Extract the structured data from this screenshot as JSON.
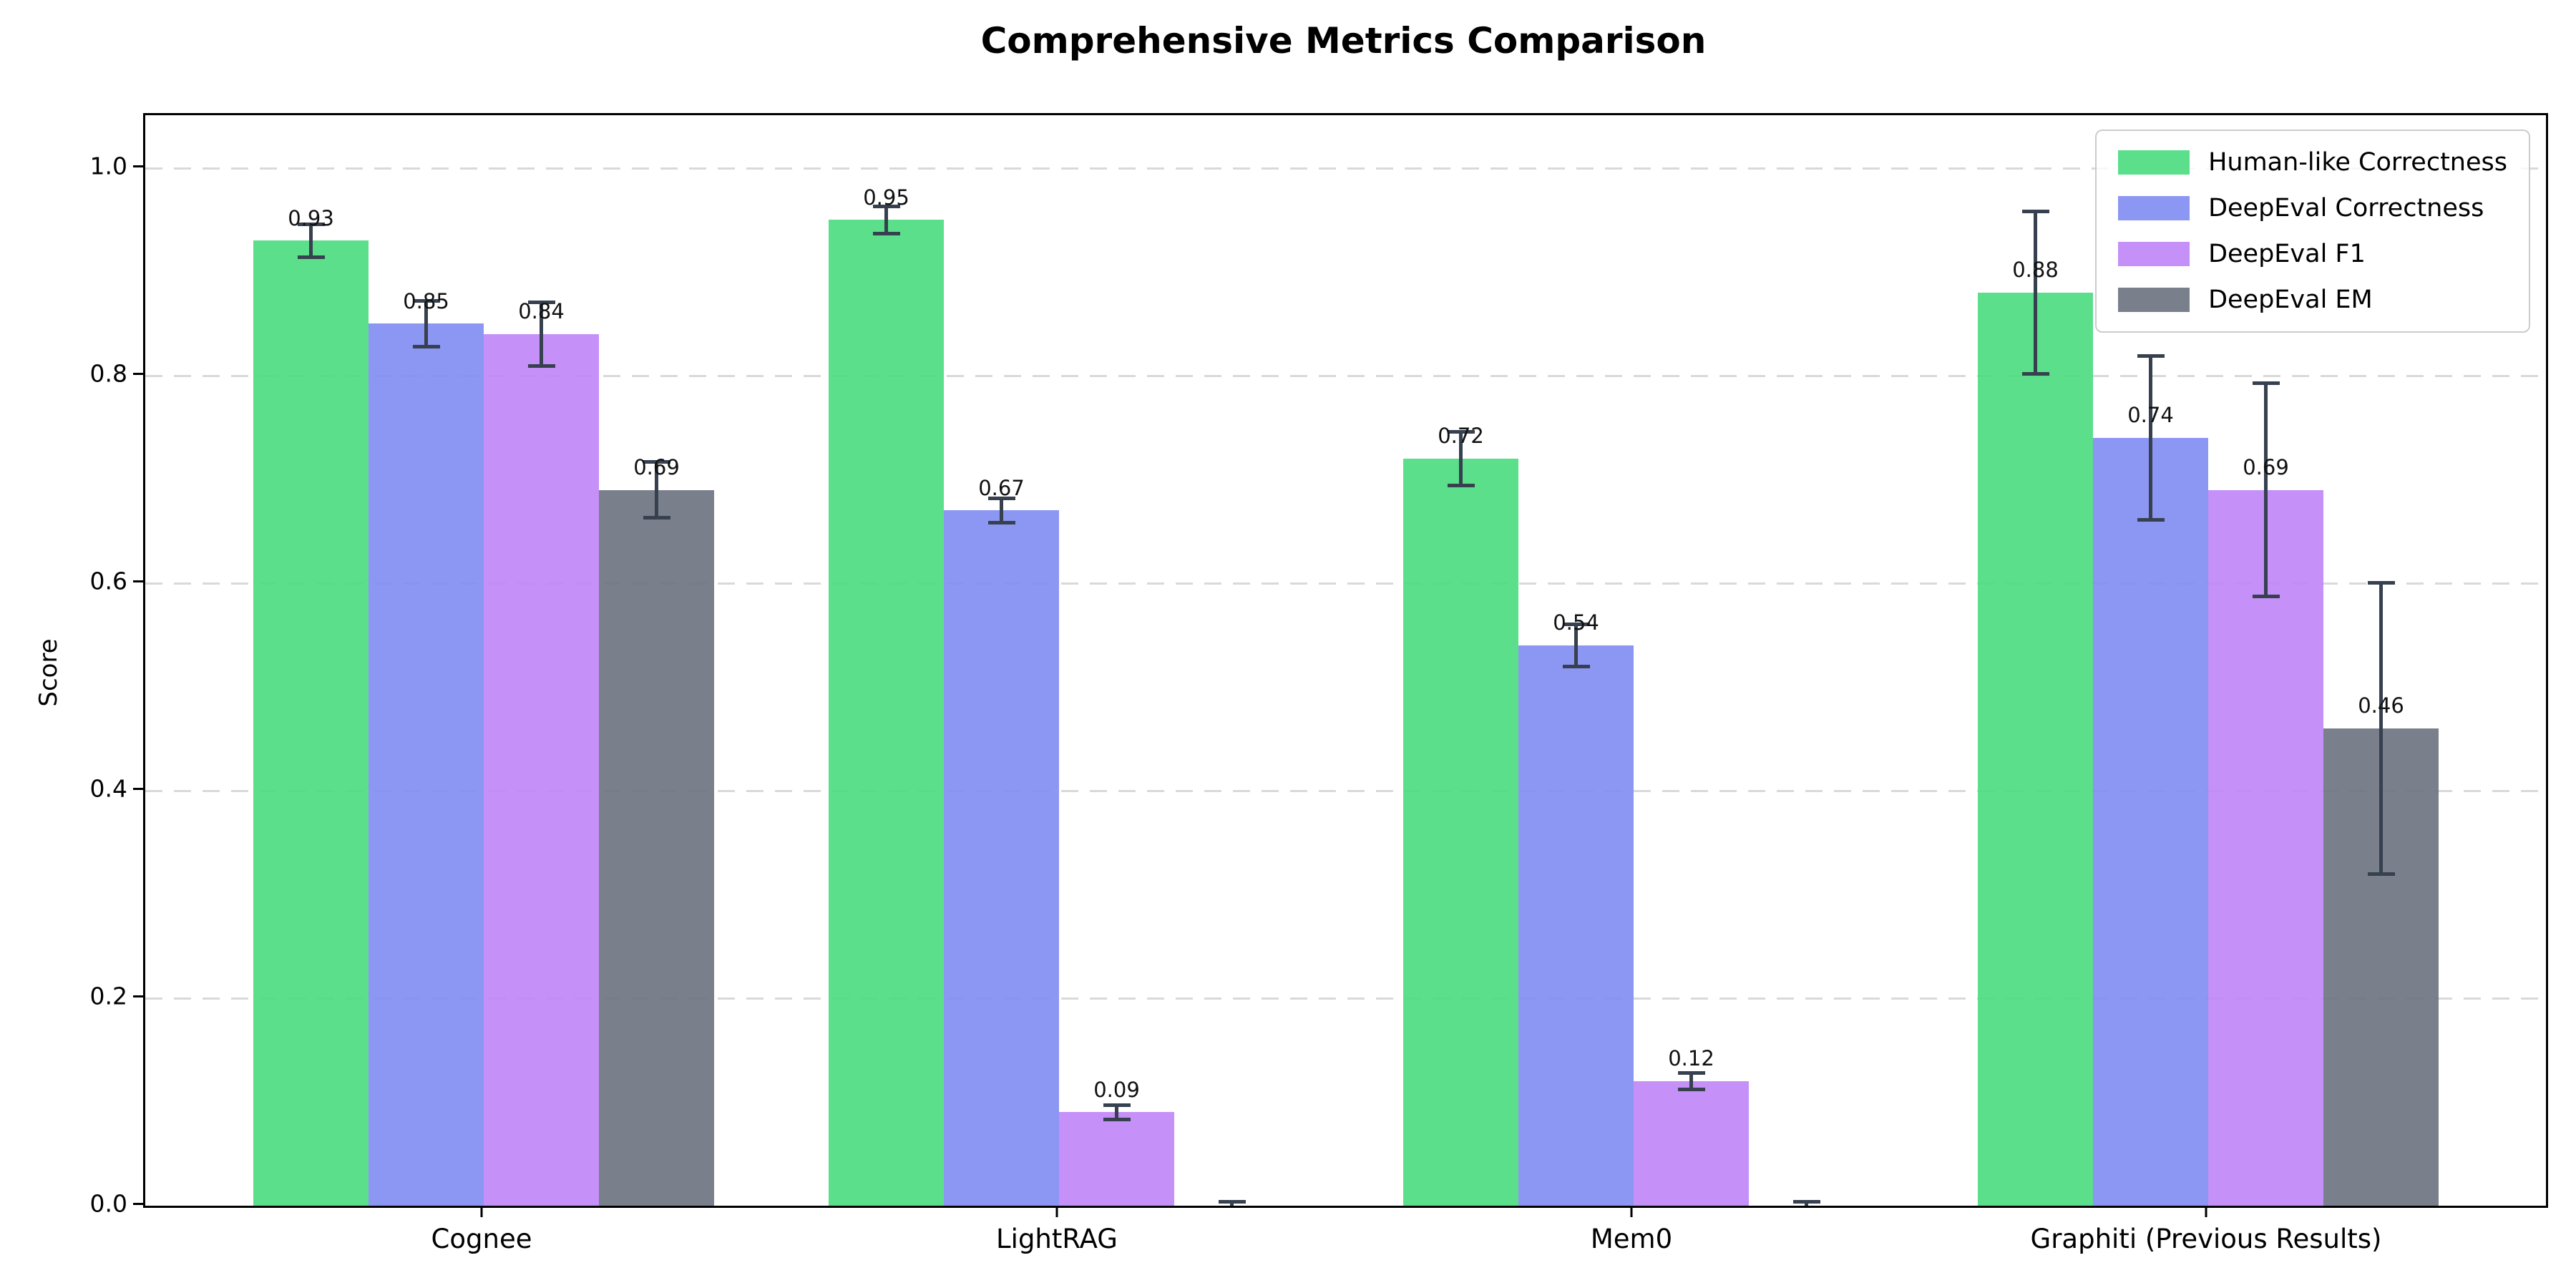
{
  "chart_data": {
    "type": "bar",
    "title": "Comprehensive Metrics Comparison",
    "ylabel": "Score",
    "xlabel": "",
    "categories": [
      "Cognee",
      "LightRAG",
      "Mem0",
      "Graphiti (Previous Results)"
    ],
    "ytick_labels": [
      "0.0",
      "0.2",
      "0.4",
      "0.6",
      "0.8",
      "1.0"
    ],
    "ytick_values": [
      0.0,
      0.2,
      0.4,
      0.6,
      0.8,
      1.0
    ],
    "ylim": [
      0,
      1.05
    ],
    "grid": "horizontal-dashed",
    "legend_position": "upper right",
    "error_bar_color": "#36404e",
    "grid_color": "#d9d9d9",
    "series": [
      {
        "name": "Human-like Correctness",
        "color": "#49db7e",
        "values": [
          0.93,
          0.95,
          0.72,
          0.88
        ],
        "errors": [
          0.016,
          0.013,
          0.026,
          0.078
        ],
        "labels": [
          "0.93",
          "0.95",
          "0.72",
          "0.88"
        ]
      },
      {
        "name": "DeepEval Correctness",
        "color": "#7f8bf2",
        "values": [
          0.85,
          0.67,
          0.54,
          0.74
        ],
        "errors": [
          0.022,
          0.012,
          0.02,
          0.079
        ],
        "labels": [
          "0.85",
          "0.67",
          "0.54",
          "0.74"
        ]
      },
      {
        "name": "DeepEval F1",
        "color": "#bf84f7",
        "values": [
          0.84,
          0.09,
          0.12,
          0.69
        ],
        "errors": [
          0.031,
          0.007,
          0.008,
          0.103
        ],
        "labels": [
          "0.84",
          "0.09",
          "0.12",
          "0.69"
        ]
      },
      {
        "name": "DeepEval EM",
        "color": "#6a7280",
        "values": [
          0.69,
          0.0,
          0.0,
          0.46
        ],
        "errors": [
          0.027,
          0.004,
          0.004,
          0.14
        ],
        "labels": [
          "0.69",
          null,
          null,
          "0.46"
        ]
      }
    ]
  }
}
